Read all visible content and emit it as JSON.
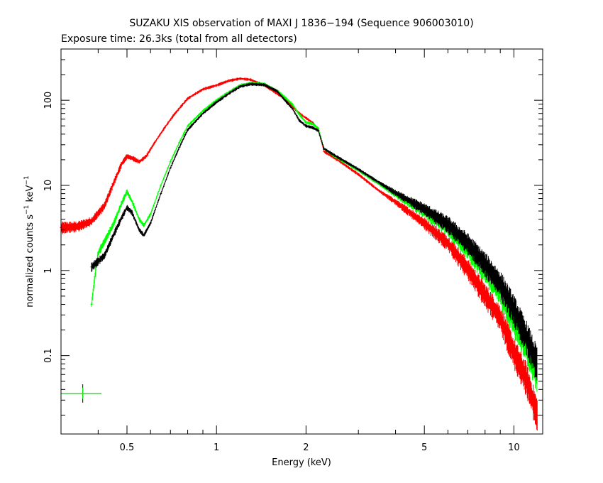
{
  "chart_data": {
    "type": "scatter",
    "title": "SUZAKU XIS observation of MAXI J 1836−194 (Sequence 906003010)",
    "subtitle": "Exposure time: 26.3ks (total from all detectors)",
    "xlabel": "Energy (keV)",
    "ylabel": "normalized counts s",
    "ylabel_sup1": "−1",
    "ylabel_mid": " keV",
    "ylabel_sup2": "−1",
    "x_scale": "log",
    "y_scale": "log",
    "xlim": [
      0.3,
      12.5
    ],
    "ylim": [
      0.012,
      400
    ],
    "x_ticks": [
      {
        "value": 0.5,
        "label": "0.5"
      },
      {
        "value": 1,
        "label": "1"
      },
      {
        "value": 2,
        "label": "2"
      },
      {
        "value": 5,
        "label": "5"
      },
      {
        "value": 10,
        "label": "10"
      }
    ],
    "y_ticks": [
      {
        "value": 0.1,
        "label": "0.1"
      },
      {
        "value": 1,
        "label": "1"
      },
      {
        "value": 10,
        "label": "10"
      },
      {
        "value": 100,
        "label": "100"
      }
    ],
    "grid": false,
    "series": [
      {
        "color": "#ff0000",
        "points": [
          [
            0.3,
            3.2
          ],
          [
            0.34,
            3.3
          ],
          [
            0.38,
            3.8
          ],
          [
            0.42,
            5.8
          ],
          [
            0.45,
            10.5
          ],
          [
            0.48,
            18
          ],
          [
            0.5,
            22
          ],
          [
            0.52,
            21
          ],
          [
            0.55,
            19
          ],
          [
            0.58,
            22
          ],
          [
            0.62,
            32
          ],
          [
            0.67,
            48
          ],
          [
            0.72,
            68
          ],
          [
            0.8,
            105
          ],
          [
            0.9,
            135
          ],
          [
            1.0,
            150
          ],
          [
            1.1,
            170
          ],
          [
            1.2,
            180
          ],
          [
            1.3,
            175
          ],
          [
            1.45,
            150
          ],
          [
            1.6,
            120
          ],
          [
            1.7,
            105
          ],
          [
            1.8,
            85
          ],
          [
            1.9,
            70
          ],
          [
            2.0,
            62
          ],
          [
            2.1,
            55
          ],
          [
            2.2,
            45
          ],
          [
            2.3,
            25
          ],
          [
            2.5,
            21
          ],
          [
            3.0,
            13.5
          ],
          [
            3.5,
            8.8
          ],
          [
            4.0,
            6.4
          ],
          [
            5.0,
            3.6
          ],
          [
            6.0,
            2.1
          ],
          [
            7.0,
            1.05
          ],
          [
            8.0,
            0.52
          ],
          [
            9.0,
            0.28
          ],
          [
            10.0,
            0.11
          ],
          [
            11.0,
            0.055
          ],
          [
            12.0,
            0.02
          ]
        ]
      },
      {
        "color": "#00ff00",
        "points": [
          [
            0.38,
            0.4
          ],
          [
            0.39,
            0.85
          ],
          [
            0.4,
            1.6
          ],
          [
            0.42,
            2.2
          ],
          [
            0.45,
            3.5
          ],
          [
            0.48,
            6.2
          ],
          [
            0.5,
            8.5
          ],
          [
            0.52,
            6.5
          ],
          [
            0.55,
            4.0
          ],
          [
            0.57,
            3.4
          ],
          [
            0.6,
            4.6
          ],
          [
            0.65,
            10
          ],
          [
            0.7,
            19
          ],
          [
            0.75,
            32
          ],
          [
            0.8,
            50
          ],
          [
            0.9,
            75
          ],
          [
            1.0,
            100
          ],
          [
            1.1,
            125
          ],
          [
            1.2,
            150
          ],
          [
            1.3,
            160
          ],
          [
            1.45,
            155
          ],
          [
            1.6,
            130
          ],
          [
            1.7,
            108
          ],
          [
            1.8,
            90
          ],
          [
            1.9,
            68
          ],
          [
            2.0,
            55
          ],
          [
            2.1,
            53
          ],
          [
            2.2,
            47
          ],
          [
            2.3,
            27
          ],
          [
            2.5,
            22
          ],
          [
            3.0,
            15
          ],
          [
            3.5,
            10.5
          ],
          [
            4.0,
            7.8
          ],
          [
            5.0,
            4.9
          ],
          [
            6.0,
            3.2
          ],
          [
            7.0,
            1.8
          ],
          [
            8.0,
            1.0
          ],
          [
            9.0,
            0.55
          ],
          [
            10.0,
            0.26
          ],
          [
            11.0,
            0.13
          ],
          [
            12.0,
            0.06
          ]
        ]
      },
      {
        "color": "#000000",
        "points": [
          [
            0.38,
            1.1
          ],
          [
            0.42,
            1.5
          ],
          [
            0.45,
            2.6
          ],
          [
            0.48,
            4.2
          ],
          [
            0.5,
            5.5
          ],
          [
            0.52,
            4.8
          ],
          [
            0.55,
            3.0
          ],
          [
            0.57,
            2.6
          ],
          [
            0.6,
            3.6
          ],
          [
            0.65,
            8
          ],
          [
            0.7,
            16
          ],
          [
            0.75,
            28
          ],
          [
            0.8,
            45
          ],
          [
            0.9,
            70
          ],
          [
            1.0,
            95
          ],
          [
            1.1,
            120
          ],
          [
            1.2,
            145
          ],
          [
            1.3,
            155
          ],
          [
            1.45,
            152
          ],
          [
            1.6,
            128
          ],
          [
            1.7,
            100
          ],
          [
            1.8,
            80
          ],
          [
            1.9,
            58
          ],
          [
            2.0,
            50
          ],
          [
            2.1,
            48
          ],
          [
            2.2,
            44
          ],
          [
            2.3,
            27
          ],
          [
            2.5,
            22.5
          ],
          [
            3.0,
            15.5
          ],
          [
            3.5,
            11
          ],
          [
            4.0,
            8.2
          ],
          [
            5.0,
            5.3
          ],
          [
            6.0,
            3.5
          ],
          [
            7.0,
            2.1
          ],
          [
            8.0,
            1.2
          ],
          [
            9.0,
            0.7
          ],
          [
            10.0,
            0.35
          ],
          [
            11.0,
            0.17
          ],
          [
            12.0,
            0.08
          ]
        ]
      }
    ],
    "background_markers": [
      {
        "color": "#000000",
        "x": 0.355,
        "y": 0.036,
        "xerr": [
          0.3,
          0.41
        ],
        "yerr": [
          0.028,
          0.046
        ]
      },
      {
        "color": "#00ff00",
        "x": 0.355,
        "y": 0.036,
        "xerr": [
          0.3,
          0.41
        ],
        "yerr": [
          0.031,
          0.042
        ]
      }
    ]
  }
}
